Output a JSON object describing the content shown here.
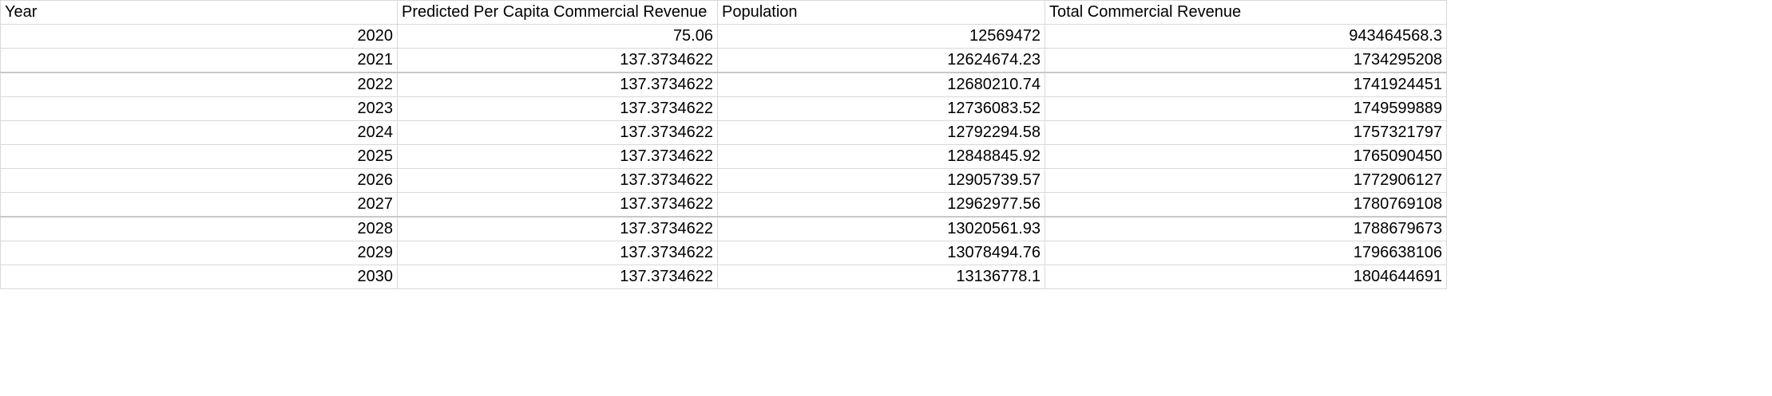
{
  "sheet": {
    "headers": [
      "Year",
      "Predicted Per Capita Commercial Revenue",
      "Population",
      "Total Commercial Revenue"
    ],
    "rows": [
      [
        "2020",
        "75.06",
        "12569472",
        "943464568.3"
      ],
      [
        "2021",
        "137.3734622",
        "12624674.23",
        "1734295208"
      ],
      [
        "2022",
        "137.3734622",
        "12680210.74",
        "1741924451"
      ],
      [
        "2023",
        "137.3734622",
        "12736083.52",
        "1749599889"
      ],
      [
        "2024",
        "137.3734622",
        "12792294.58",
        "1757321797"
      ],
      [
        "2025",
        "137.3734622",
        "12848845.92",
        "1765090450"
      ],
      [
        "2026",
        "137.3734622",
        "12905739.57",
        "1772906127"
      ],
      [
        "2027",
        "137.3734622",
        "12962977.56",
        "1780769108"
      ],
      [
        "2028",
        "137.3734622",
        "13020561.93",
        "1788679673"
      ],
      [
        "2029",
        "137.3734622",
        "13078494.76",
        "1796638106"
      ],
      [
        "2030",
        "137.3734622",
        "13136778.1",
        "1804644691"
      ]
    ]
  },
  "colors": {
    "gridline": "#d9d9d9",
    "text": "#000000",
    "background": "#ffffff"
  }
}
